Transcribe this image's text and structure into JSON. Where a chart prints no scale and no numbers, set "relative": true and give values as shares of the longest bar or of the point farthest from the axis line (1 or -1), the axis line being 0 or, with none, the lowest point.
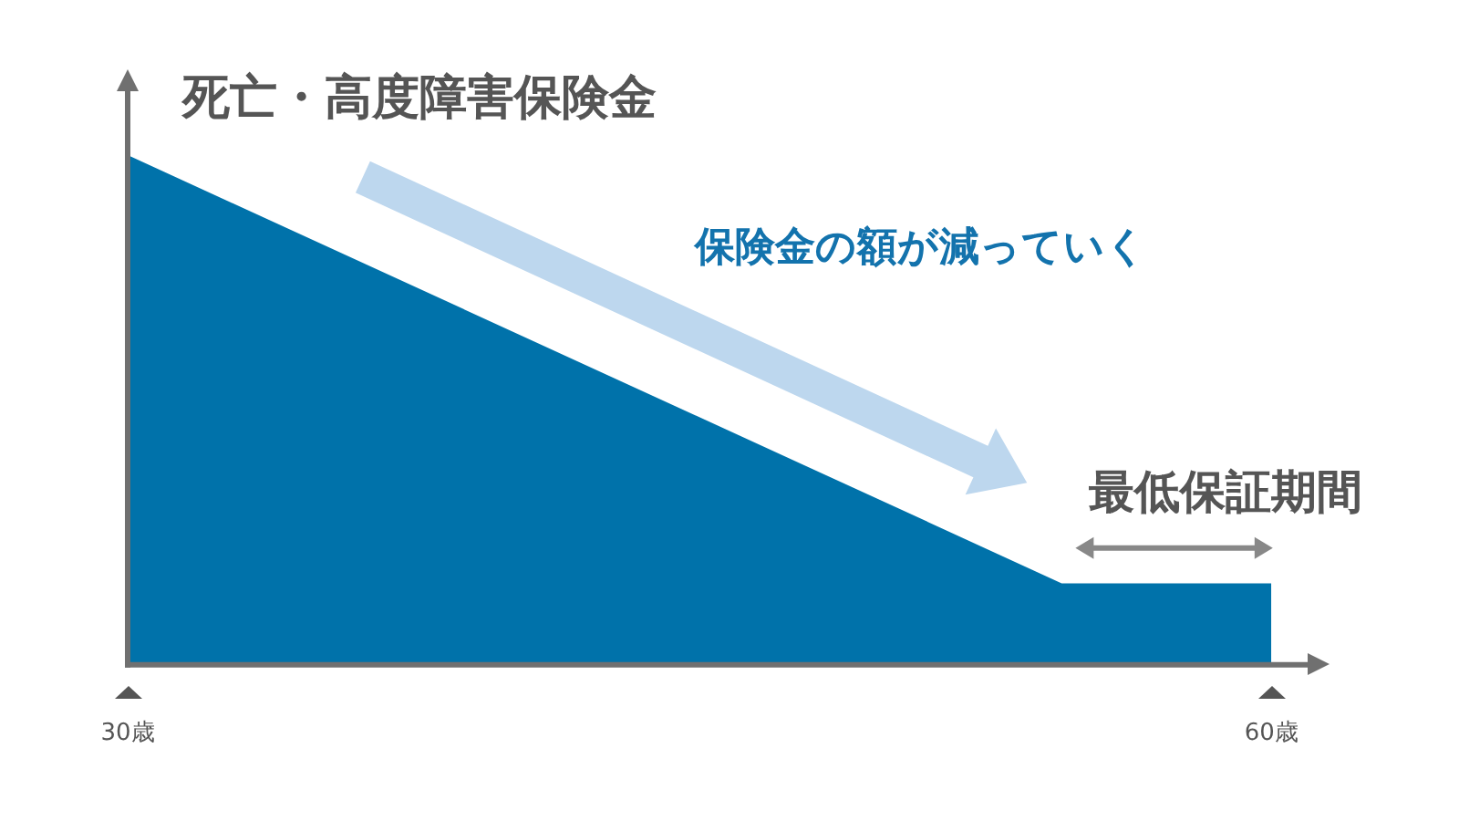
{
  "chart_data": {
    "type": "area",
    "title": "死亡・高度障害保険金",
    "relative": true,
    "x": [
      30,
      54.5,
      60
    ],
    "xlim": [
      30,
      61
    ],
    "xticks": [
      {
        "value": 30,
        "label": "30歳"
      },
      {
        "value": 60,
        "label": "60歳"
      }
    ],
    "series": [
      {
        "color": "#0072aa",
        "values": [
          1,
          0.16,
          0.16
        ]
      }
    ],
    "annotations": [
      "保険金の額が減っていく",
      "最低保証期間"
    ],
    "grid": false,
    "legend": false
  }
}
